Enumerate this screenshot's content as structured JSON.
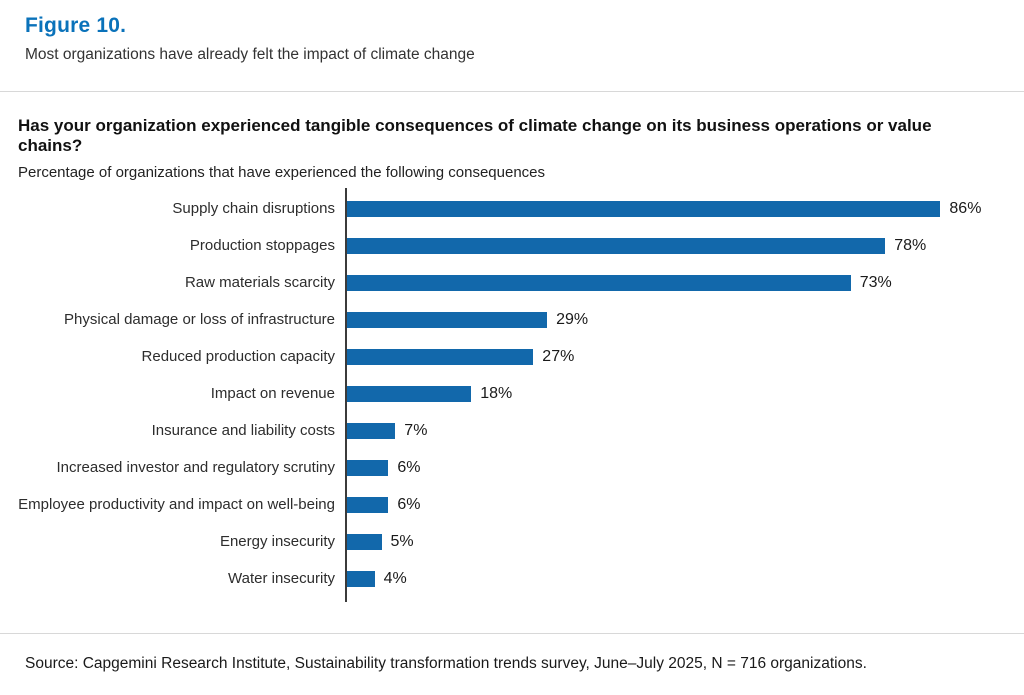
{
  "figure": {
    "label": "Figure 10.",
    "caption": "Most organizations have already felt the impact of climate change"
  },
  "chart_data": {
    "type": "bar",
    "orientation": "horizontal",
    "title": "Has your organization experienced tangible consequences of climate change on its business operations or value chains?",
    "subtitle": "Percentage of organizations that have experienced the following consequences",
    "categories": [
      "Supply chain disruptions",
      "Production stoppages",
      "Raw materials scarcity",
      "Physical damage or loss of infrastructure",
      "Reduced production capacity",
      "Impact on revenue",
      "Insurance and liability costs",
      "Increased investor and regulatory scrutiny",
      "Employee productivity and impact on well-being",
      "Energy insecurity",
      "Water insecurity"
    ],
    "values": [
      86,
      78,
      73,
      29,
      27,
      18,
      7,
      6,
      6,
      5,
      4
    ],
    "value_labels": [
      "86%",
      "78%",
      "73%",
      "29%",
      "27%",
      "18%",
      "7%",
      "6%",
      "6%",
      "5%",
      "4%"
    ],
    "xlim": [
      0,
      100
    ],
    "grid": false,
    "legend": null,
    "bar_color": "#1268ab",
    "axis_color": "#3b3b3b"
  },
  "source": "Source: Capgemini Research Institute, Sustainability transformation trends survey, June–July 2025, N = 716 organizations.",
  "colors": {
    "accent_blue": "#0a72ba",
    "bar_blue": "#1268ab",
    "divider_gray": "#d8d8d8",
    "text_dark": "#202020"
  }
}
